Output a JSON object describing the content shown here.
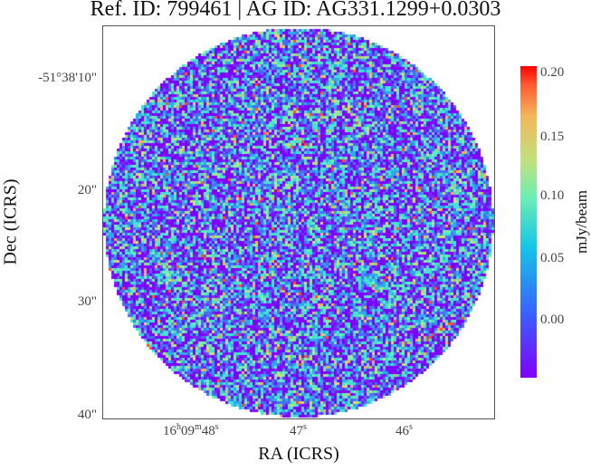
{
  "chart_data": {
    "type": "heatmap",
    "title": "Ref. ID: 799461 | AG ID: AG331.1299+0.0303",
    "xlabel": "RA (ICRS)",
    "ylabel": "Dec (ICRS)",
    "x_ticks": [
      {
        "base": "16",
        "h": "h",
        "mid": "09",
        "m": "m",
        "tail": "48",
        "s": "s"
      },
      {
        "base": "47",
        "s": "s"
      },
      {
        "base": "46",
        "s": "s"
      }
    ],
    "y_ticks": [
      "-51°38'10\"",
      "20\"",
      "30\"",
      "40\""
    ],
    "colorbar": {
      "label": "mJy/beam",
      "ticks": [
        "0.20",
        "0.15",
        "0.10",
        "0.05",
        "0.00"
      ],
      "tick_values": [
        0.2,
        0.15,
        0.1,
        0.05,
        0.0
      ],
      "range": [
        -0.02,
        0.205
      ],
      "colormap": "rainbow"
    },
    "image": {
      "description": "circular primary-beam field of noise emission",
      "value_range": [
        -0.02,
        0.15
      ],
      "dominant_levels": [
        -0.02,
        0.0,
        0.05
      ],
      "colors": {
        "low": "#8000ff",
        "mid_low": "#3c6cf4",
        "mid": "#4ee8c8",
        "high": "#e8c060",
        "peak": "#ff4020"
      }
    }
  }
}
